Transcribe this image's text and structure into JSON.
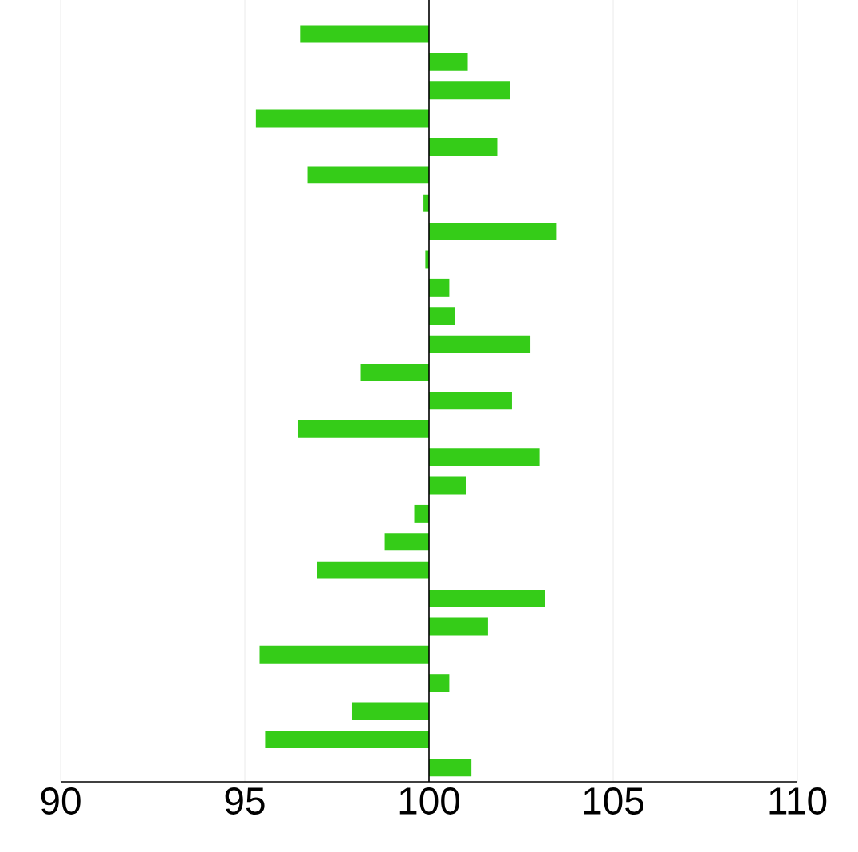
{
  "chart_data": {
    "type": "bar",
    "orientation": "horizontal",
    "color": "#35cc18",
    "grid": "x",
    "categories": [
      null,
      null,
      null,
      null,
      null,
      null,
      null,
      null,
      null,
      null,
      null,
      null,
      null,
      null,
      null,
      null,
      null,
      null,
      null,
      null,
      null,
      null,
      null,
      null,
      null,
      null,
      null
    ],
    "base": [
      100,
      100,
      100,
      100,
      100,
      100,
      100,
      100,
      100,
      100,
      100,
      100,
      100,
      100,
      100,
      100,
      100,
      100,
      100,
      100,
      100,
      100,
      100,
      100,
      100,
      100,
      100
    ],
    "values": [
      -3.5,
      1.05,
      2.2,
      -4.7,
      1.85,
      -3.3,
      -0.15,
      3.45,
      -0.1,
      0.55,
      0.7,
      2.75,
      -1.85,
      2.25,
      -3.55,
      3.0,
      1.0,
      -0.4,
      -1.2,
      -3.05,
      3.15,
      1.6,
      -4.6,
      0.55,
      -2.1,
      -4.45,
      1.15
    ],
    "ref_lines": [
      {
        "axis": "x",
        "value": 100,
        "color": "#000000"
      }
    ],
    "xlim": [
      90,
      110
    ],
    "xticks": [
      90,
      95,
      100,
      105,
      110
    ]
  }
}
